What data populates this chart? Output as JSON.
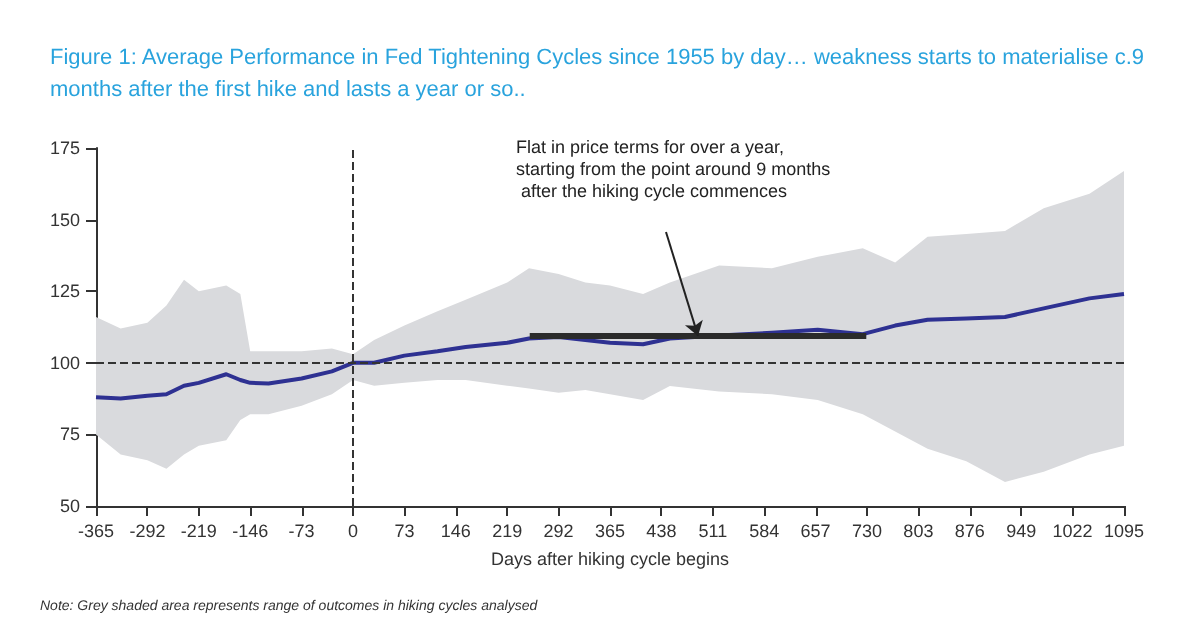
{
  "chart_data": {
    "type": "line",
    "title": "Figure 1: Average Performance in Fed Tightening Cycles since 1955 by day… weakness starts to materialise c.9 months after the first hike and lasts a year or so..",
    "xlabel": "Days after hiking cycle begins",
    "xlim": [
      -365,
      1095
    ],
    "xticks": [
      -365,
      -292,
      -219,
      -146,
      -73,
      0,
      73,
      146,
      219,
      292,
      365,
      438,
      511,
      584,
      657,
      730,
      803,
      876,
      949,
      1022,
      1095
    ],
    "ylim": [
      50,
      175
    ],
    "yticks": [
      50,
      75,
      100,
      125,
      150,
      175
    ],
    "grid": false,
    "series": [
      {
        "color": "#2e3192",
        "x": [
          -365,
          -330,
          -292,
          -265,
          -240,
          -219,
          -180,
          -160,
          -146,
          -120,
          -73,
          -30,
          0,
          30,
          73,
          120,
          160,
          219,
          250,
          292,
          330,
          365,
          412,
          450,
          520,
          595,
          660,
          724,
          770,
          816,
          871,
          926,
          981,
          1046,
          1095
        ],
        "values": [
          88,
          87.5,
          88.5,
          89,
          92,
          93,
          96,
          94,
          93,
          92.8,
          94.5,
          97,
          100,
          100,
          102.5,
          104,
          105.5,
          107,
          108.5,
          109,
          108,
          107,
          106.5,
          108.5,
          109.5,
          110.5,
          111.5,
          110,
          113,
          115,
          115.5,
          116,
          119,
          122.5,
          124
        ],
        "lower": [
          75,
          68,
          66,
          63,
          68,
          71,
          73,
          80,
          82,
          82,
          85,
          89,
          94,
          92,
          93,
          94,
          94,
          92,
          91,
          89.5,
          90.5,
          89,
          87,
          91.9,
          90,
          89,
          87,
          82,
          76,
          70,
          65.6,
          58.4,
          62,
          68,
          71
        ],
        "upper": [
          116,
          112,
          114,
          120,
          129,
          125,
          127,
          124,
          104,
          104,
          104,
          105,
          103,
          108,
          113,
          118,
          122,
          128,
          133,
          131,
          128,
          127,
          124,
          128,
          134,
          133,
          137,
          140,
          135,
          144,
          145,
          146,
          154,
          159,
          167
        ]
      },
      {
        "color": "#2b2b2b",
        "x": [
          251,
          729
        ],
        "values": [
          109.4,
          109.4
        ]
      }
    ],
    "ref_lines": [
      {
        "axis": "y",
        "value": 100,
        "color": "#333333",
        "line_style": "dashed"
      },
      {
        "axis": "x",
        "value": 0,
        "color": "#333333",
        "line_style": "dashed"
      }
    ],
    "annotations": [
      "Flat in price terms for over a year, starting from the point around 9 months after the hiking cycle commences",
      "Note: Grey shaded area represents range of outcomes in hiking cycles analysed"
    ]
  }
}
